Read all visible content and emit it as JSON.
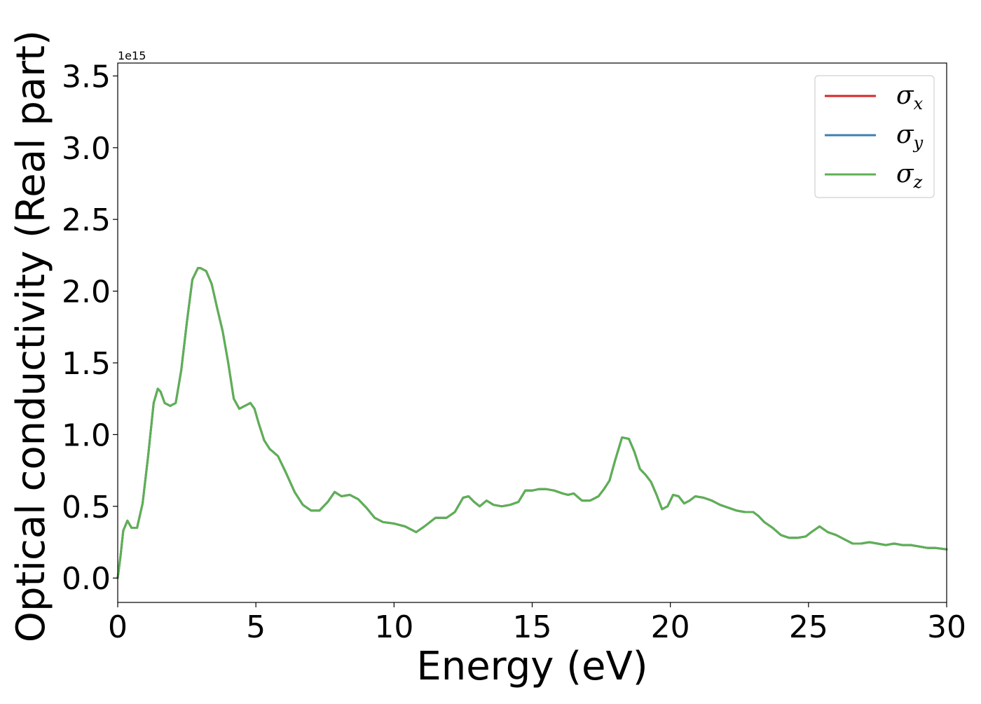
{
  "chart_data": {
    "type": "line",
    "xlabel": "Energy (eV)",
    "ylabel": "Optical conductivity (Real part)",
    "y_offset_text": "1e15",
    "y_multiplier": 1000000000000000.0,
    "xlim": [
      0,
      30
    ],
    "ylim": [
      -0.17,
      3.59
    ],
    "xticks": [
      0,
      5,
      10,
      15,
      20,
      25,
      30
    ],
    "xtick_labels": [
      "0",
      "5",
      "10",
      "15",
      "20",
      "25",
      "30"
    ],
    "yticks": [
      0.0,
      0.5,
      1.0,
      1.5,
      2.0,
      2.5,
      3.0,
      3.5
    ],
    "ytick_labels": [
      "0.0",
      "0.5",
      "1.0",
      "1.5",
      "2.0",
      "2.5",
      "3.0",
      "3.5"
    ],
    "grid": false,
    "legend_position": "top-right",
    "x": [
      0,
      0.1,
      0.2,
      0.35,
      0.5,
      0.7,
      0.9,
      1.1,
      1.3,
      1.45,
      1.55,
      1.7,
      1.9,
      2.1,
      2.3,
      2.5,
      2.7,
      2.9,
      3.0,
      3.2,
      3.4,
      3.6,
      3.8,
      4.0,
      4.2,
      4.4,
      4.6,
      4.8,
      4.95,
      5.1,
      5.3,
      5.5,
      5.8,
      6.1,
      6.4,
      6.7,
      7.0,
      7.3,
      7.6,
      7.85,
      8.1,
      8.4,
      8.7,
      9.0,
      9.3,
      9.6,
      10.0,
      10.4,
      10.8,
      11.1,
      11.5,
      11.9,
      12.2,
      12.5,
      12.7,
      12.9,
      13.1,
      13.35,
      13.6,
      13.9,
      14.2,
      14.5,
      14.75,
      15.0,
      15.25,
      15.5,
      15.8,
      16.1,
      16.3,
      16.5,
      16.8,
      17.1,
      17.4,
      17.6,
      17.8,
      18.0,
      18.25,
      18.5,
      18.7,
      18.9,
      19.1,
      19.3,
      19.5,
      19.7,
      19.9,
      20.1,
      20.3,
      20.5,
      20.7,
      20.9,
      21.2,
      21.5,
      21.8,
      22.1,
      22.4,
      22.7,
      23.0,
      23.2,
      23.4,
      23.7,
      24.0,
      24.3,
      24.6,
      24.9,
      25.1,
      25.4,
      25.7,
      26.0,
      26.3,
      26.6,
      26.9,
      27.2,
      27.5,
      27.8,
      28.1,
      28.4,
      28.7,
      29.0,
      29.3,
      29.6,
      30.0
    ],
    "y": [
      0.0,
      0.15,
      0.33,
      0.4,
      0.35,
      0.35,
      0.52,
      0.85,
      1.22,
      1.32,
      1.3,
      1.22,
      1.2,
      1.22,
      1.45,
      1.78,
      2.08,
      2.16,
      2.16,
      2.14,
      2.05,
      1.88,
      1.72,
      1.5,
      1.25,
      1.18,
      1.2,
      1.22,
      1.18,
      1.08,
      0.96,
      0.9,
      0.85,
      0.73,
      0.6,
      0.51,
      0.47,
      0.47,
      0.53,
      0.6,
      0.57,
      0.58,
      0.55,
      0.49,
      0.42,
      0.39,
      0.38,
      0.36,
      0.32,
      0.36,
      0.42,
      0.42,
      0.46,
      0.56,
      0.57,
      0.53,
      0.5,
      0.54,
      0.51,
      0.5,
      0.51,
      0.53,
      0.61,
      0.61,
      0.62,
      0.62,
      0.61,
      0.59,
      0.58,
      0.59,
      0.54,
      0.54,
      0.57,
      0.62,
      0.68,
      0.82,
      0.98,
      0.97,
      0.88,
      0.76,
      0.72,
      0.67,
      0.58,
      0.48,
      0.5,
      0.58,
      0.57,
      0.52,
      0.54,
      0.57,
      0.56,
      0.54,
      0.51,
      0.49,
      0.47,
      0.46,
      0.46,
      0.43,
      0.39,
      0.35,
      0.3,
      0.28,
      0.28,
      0.29,
      0.32,
      0.36,
      0.32,
      0.3,
      0.27,
      0.24,
      0.24,
      0.25,
      0.24,
      0.23,
      0.24,
      0.23,
      0.23,
      0.22,
      0.21,
      0.21,
      0.2
    ],
    "series": [
      {
        "name": "σ_x",
        "base": "σ",
        "sub": "x",
        "color": "#d62728"
      },
      {
        "name": "σ_y",
        "base": "σ",
        "sub": "y",
        "color": "#3b7fb5"
      },
      {
        "name": "σ_z",
        "base": "σ",
        "sub": "z",
        "color": "#5cb153"
      }
    ]
  }
}
